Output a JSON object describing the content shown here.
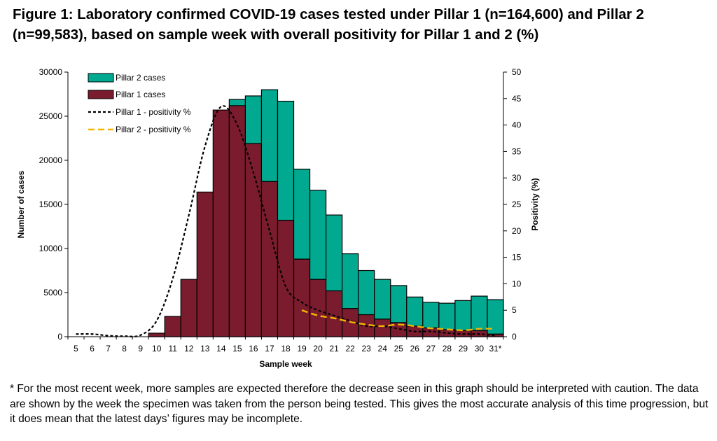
{
  "figure": {
    "title": "Figure 1: Laboratory confirmed COVID-19 cases tested under Pillar 1 (n=164,600) and Pillar 2 (n=99,583), based on sample week with overall positivity for Pillar 1 and 2 (%)",
    "footnote": "* For the most recent week, more samples are expected therefore the decrease seen in this graph should be interpreted with caution. The data are shown by the week the specimen was taken from the person being tested. This gives the most accurate analysis of this time progression, but it does mean that the latest days’ figures may be incomplete."
  },
  "chart_data": {
    "type": "bar",
    "stacked": true,
    "xlabel": "Sample week",
    "ylabel": "Number of cases",
    "y2label": "Positivity (%)",
    "categories": [
      "5",
      "6",
      "7",
      "8",
      "9",
      "10",
      "11",
      "12",
      "13",
      "14",
      "15",
      "16",
      "17",
      "18",
      "19",
      "20",
      "21",
      "22",
      "23",
      "24",
      "25",
      "26",
      "27",
      "28",
      "29",
      "30",
      "31*"
    ],
    "ylim": [
      0,
      30000
    ],
    "yticks": [
      0,
      5000,
      10000,
      15000,
      20000,
      25000,
      30000
    ],
    "y2lim": [
      0,
      50
    ],
    "y2ticks": [
      0,
      5,
      10,
      15,
      20,
      25,
      30,
      35,
      40,
      45,
      50
    ],
    "legend_position": "top-left",
    "series": [
      {
        "name": "Pillar 1 cases",
        "kind": "bar",
        "color": "#7b1c2e",
        "values": [
          0,
          0,
          0,
          0,
          0,
          400,
          2300,
          6500,
          16400,
          25700,
          26200,
          21900,
          17600,
          13200,
          8800,
          6500,
          5200,
          3200,
          2500,
          2000,
          1600,
          1200,
          1000,
          800,
          700,
          700,
          300
        ]
      },
      {
        "name": "Pillar 2 cases",
        "kind": "bar",
        "color": "#00a98f",
        "values": [
          0,
          0,
          0,
          0,
          0,
          0,
          0,
          0,
          0,
          0,
          700,
          5400,
          10400,
          13500,
          10200,
          10100,
          8600,
          6200,
          5000,
          4500,
          4200,
          3300,
          2900,
          3000,
          3400,
          3900,
          3900
        ]
      },
      {
        "name": "Pillar 1 - positivity %",
        "kind": "line",
        "axis": "y2",
        "color": "#000000",
        "dash": "dotted",
        "values": [
          0.5,
          0.5,
          0.2,
          0.1,
          0.3,
          3,
          11,
          23,
          36,
          43.5,
          40,
          31,
          20,
          9.5,
          6.5,
          5,
          4,
          3,
          2,
          2,
          1.5,
          1,
          1,
          0.7,
          0.5,
          0.5,
          0.2
        ]
      },
      {
        "name": "Pillar 2 - positivity %",
        "kind": "line",
        "axis": "y2",
        "color": "#f5b400",
        "dash": "dashed",
        "values": [
          null,
          null,
          null,
          null,
          null,
          null,
          null,
          null,
          null,
          null,
          null,
          null,
          null,
          null,
          5,
          4,
          3.5,
          2.8,
          2.3,
          2.0,
          2.3,
          2.0,
          1.6,
          1.4,
          1.2,
          1.5,
          1.5
        ]
      }
    ]
  }
}
